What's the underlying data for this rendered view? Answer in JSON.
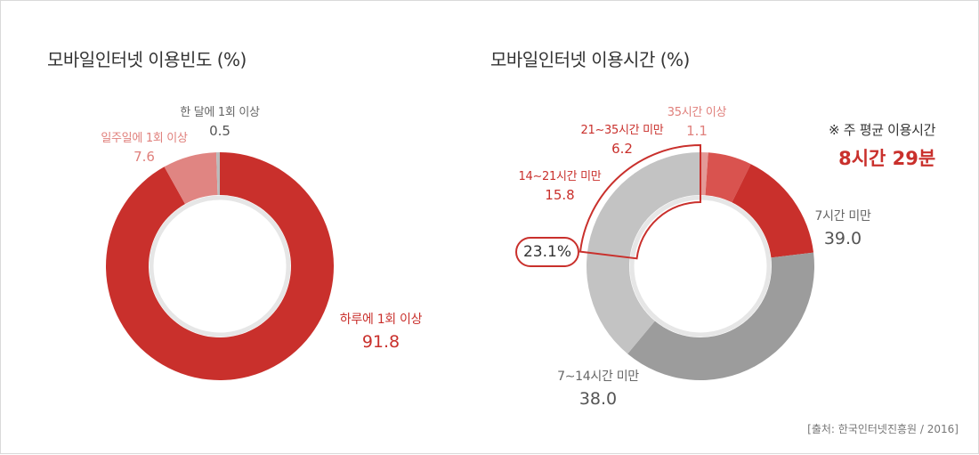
{
  "chart_data": [
    {
      "type": "pie",
      "title": "모바일인터넷 이용빈도 (%)",
      "series": [
        {
          "name": "하루에 1회 이상",
          "value": 91.8,
          "value_label": "91.8",
          "color": "#c9302c"
        },
        {
          "name": "일주일에 1회 이상",
          "value": 7.6,
          "value_label": "7.6",
          "color": "#e08582"
        },
        {
          "name": "한 달에 1회 이상",
          "value": 0.5,
          "value_label": "0.5",
          "color": "#bbbbbb"
        }
      ]
    },
    {
      "type": "pie",
      "title": "모바일인터넷 이용시간 (%)",
      "series": [
        {
          "name": "35시간 이상",
          "value": 1.1,
          "value_label": "1.1",
          "color": "#e39a97"
        },
        {
          "name": "21∼35시간 미만",
          "value": 6.2,
          "value_label": "6.2",
          "color": "#d9534f"
        },
        {
          "name": "14∼21시간 미만",
          "value": 15.8,
          "value_label": "15.8",
          "color": "#c9302c"
        },
        {
          "name": "7∼14시간 미만",
          "value": 38.0,
          "value_label": "38.0",
          "color": "#9c9c9c"
        },
        {
          "name": "7시간 미만",
          "value": 39.0,
          "value_label": "39.0",
          "color": "#c3c3c3"
        }
      ],
      "highlight_total": "23.1%",
      "weekly_average": {
        "label": "※ 주 평균 이용시간",
        "value": "8시간 29분"
      }
    }
  ],
  "source": "[출처: 한국인터넷진흥원 / 2016]"
}
